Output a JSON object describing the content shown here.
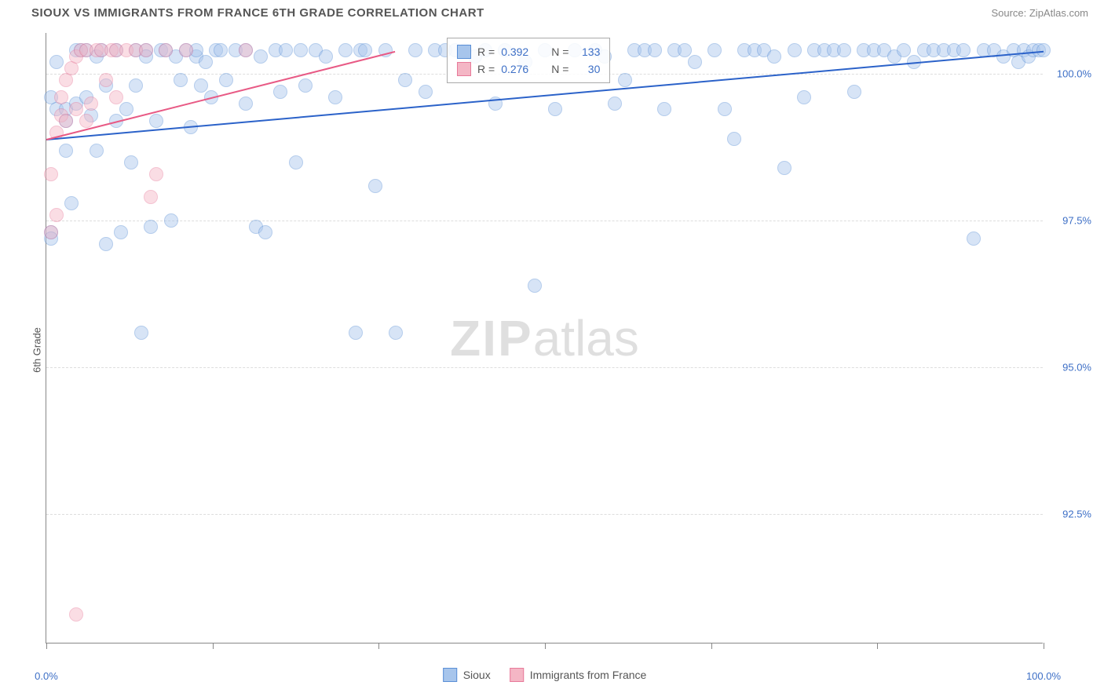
{
  "title": "SIOUX VS IMMIGRANTS FROM FRANCE 6TH GRADE CORRELATION CHART",
  "source": "Source: ZipAtlas.com",
  "y_axis_label": "6th Grade",
  "watermark_bold": "ZIP",
  "watermark_light": "atlas",
  "chart": {
    "type": "scatter",
    "background_color": "#ffffff",
    "grid_color": "#dddddd",
    "axis_color": "#888888",
    "xlim": [
      0,
      100
    ],
    "ylim": [
      90.3,
      100.7
    ],
    "x_ticks": [
      0,
      16.67,
      33.33,
      50,
      66.67,
      83.33,
      100
    ],
    "x_tick_labels": {
      "0": "0.0%",
      "100": "100.0%"
    },
    "y_ticks": [
      92.5,
      95.0,
      97.5,
      100.0
    ],
    "y_tick_labels": [
      "92.5%",
      "95.0%",
      "97.5%",
      "100.0%"
    ],
    "point_radius": 9,
    "point_opacity": 0.45,
    "series": [
      {
        "name": "Sioux",
        "color_fill": "#a7c5ec",
        "color_stroke": "#5a8fd6",
        "R": "0.392",
        "N": "133",
        "trend": {
          "x1": 0,
          "y1": 98.9,
          "x2": 100,
          "y2": 100.4,
          "color": "#2b62c9",
          "width": 2
        },
        "points": [
          [
            0.5,
            97.3
          ],
          [
            0.5,
            97.2
          ],
          [
            0.5,
            99.6
          ],
          [
            1,
            100.2
          ],
          [
            1,
            99.4
          ],
          [
            2,
            99.4
          ],
          [
            2,
            99.2
          ],
          [
            2,
            98.7
          ],
          [
            2.5,
            97.8
          ],
          [
            3,
            100.4
          ],
          [
            3,
            99.5
          ],
          [
            3.5,
            100.4
          ],
          [
            4,
            100.4
          ],
          [
            4,
            99.6
          ],
          [
            4.5,
            99.3
          ],
          [
            5,
            98.7
          ],
          [
            5,
            100.3
          ],
          [
            5.5,
            100.4
          ],
          [
            6,
            97.1
          ],
          [
            6,
            99.8
          ],
          [
            7,
            100.4
          ],
          [
            7,
            99.2
          ],
          [
            7.5,
            97.3
          ],
          [
            8,
            99.4
          ],
          [
            8.5,
            98.5
          ],
          [
            9,
            100.4
          ],
          [
            9,
            99.8
          ],
          [
            9.5,
            95.6
          ],
          [
            10,
            100.4
          ],
          [
            10,
            100.3
          ],
          [
            10.5,
            97.4
          ],
          [
            11,
            99.2
          ],
          [
            11.5,
            100.4
          ],
          [
            12,
            100.4
          ],
          [
            12.5,
            97.5
          ],
          [
            13,
            100.3
          ],
          [
            13.5,
            99.9
          ],
          [
            14,
            100.4
          ],
          [
            14.5,
            99.1
          ],
          [
            15,
            100.3
          ],
          [
            15,
            100.4
          ],
          [
            15.5,
            99.8
          ],
          [
            16,
            100.2
          ],
          [
            16.5,
            99.6
          ],
          [
            17,
            100.4
          ],
          [
            17.5,
            100.4
          ],
          [
            18,
            99.9
          ],
          [
            19,
            100.4
          ],
          [
            20,
            99.5
          ],
          [
            20,
            100.4
          ],
          [
            21,
            97.4
          ],
          [
            21.5,
            100.3
          ],
          [
            22,
            97.3
          ],
          [
            23,
            100.4
          ],
          [
            23.5,
            99.7
          ],
          [
            24,
            100.4
          ],
          [
            25,
            98.5
          ],
          [
            25.5,
            100.4
          ],
          [
            26,
            99.8
          ],
          [
            27,
            100.4
          ],
          [
            28,
            100.3
          ],
          [
            29,
            99.6
          ],
          [
            30,
            100.4
          ],
          [
            31,
            95.6
          ],
          [
            31.5,
            100.4
          ],
          [
            32,
            100.4
          ],
          [
            33,
            98.1
          ],
          [
            34,
            100.4
          ],
          [
            35,
            95.6
          ],
          [
            36,
            99.9
          ],
          [
            37,
            100.4
          ],
          [
            38,
            99.7
          ],
          [
            39,
            100.4
          ],
          [
            40,
            100.4
          ],
          [
            41,
            100.4
          ],
          [
            42,
            100.4
          ],
          [
            43,
            100.3
          ],
          [
            44,
            100.4
          ],
          [
            45,
            99.5
          ],
          [
            46,
            100.4
          ],
          [
            48,
            100.2
          ],
          [
            49,
            96.4
          ],
          [
            50,
            100.4
          ],
          [
            51,
            99.4
          ],
          [
            53,
            100.4
          ],
          [
            55,
            100.4
          ],
          [
            56,
            100.3
          ],
          [
            57,
            99.5
          ],
          [
            58,
            99.9
          ],
          [
            59,
            100.4
          ],
          [
            60,
            100.4
          ],
          [
            61,
            100.4
          ],
          [
            62,
            99.4
          ],
          [
            63,
            100.4
          ],
          [
            64,
            100.4
          ],
          [
            65,
            100.2
          ],
          [
            67,
            100.4
          ],
          [
            68,
            99.4
          ],
          [
            69,
            98.9
          ],
          [
            70,
            100.4
          ],
          [
            71,
            100.4
          ],
          [
            72,
            100.4
          ],
          [
            73,
            100.3
          ],
          [
            74,
            98.4
          ],
          [
            75,
            100.4
          ],
          [
            76,
            99.6
          ],
          [
            77,
            100.4
          ],
          [
            78,
            100.4
          ],
          [
            79,
            100.4
          ],
          [
            80,
            100.4
          ],
          [
            81,
            99.7
          ],
          [
            82,
            100.4
          ],
          [
            83,
            100.4
          ],
          [
            84,
            100.4
          ],
          [
            85,
            100.3
          ],
          [
            86,
            100.4
          ],
          [
            87,
            100.2
          ],
          [
            88,
            100.4
          ],
          [
            89,
            100.4
          ],
          [
            90,
            100.4
          ],
          [
            91,
            100.4
          ],
          [
            92,
            100.4
          ],
          [
            93,
            97.2
          ],
          [
            94,
            100.4
          ],
          [
            95,
            100.4
          ],
          [
            96,
            100.3
          ],
          [
            97,
            100.4
          ],
          [
            97.5,
            100.2
          ],
          [
            98,
            100.4
          ],
          [
            98.5,
            100.3
          ],
          [
            99,
            100.4
          ],
          [
            99.5,
            100.4
          ],
          [
            100,
            100.4
          ]
        ]
      },
      {
        "name": "Immigrants from France",
        "color_fill": "#f4b6c5",
        "color_stroke": "#e87a9a",
        "R": "0.276",
        "N": "30",
        "trend": {
          "x1": 0,
          "y1": 98.9,
          "x2": 35,
          "y2": 100.4,
          "color": "#e85a85",
          "width": 2
        },
        "points": [
          [
            0.5,
            98.3
          ],
          [
            0.5,
            97.3
          ],
          [
            1,
            97.6
          ],
          [
            1,
            99.0
          ],
          [
            1.5,
            99.3
          ],
          [
            1.5,
            99.6
          ],
          [
            2,
            99.2
          ],
          [
            2,
            99.9
          ],
          [
            2.5,
            100.1
          ],
          [
            3,
            100.3
          ],
          [
            3,
            99.4
          ],
          [
            3.5,
            100.4
          ],
          [
            4,
            99.2
          ],
          [
            4,
            100.4
          ],
          [
            4.5,
            99.5
          ],
          [
            5,
            100.4
          ],
          [
            5.5,
            100.4
          ],
          [
            6,
            99.9
          ],
          [
            6.5,
            100.4
          ],
          [
            7,
            100.4
          ],
          [
            7,
            99.6
          ],
          [
            8,
            100.4
          ],
          [
            9,
            100.4
          ],
          [
            10,
            100.4
          ],
          [
            10.5,
            97.9
          ],
          [
            11,
            98.3
          ],
          [
            12,
            100.4
          ],
          [
            14,
            100.4
          ],
          [
            20,
            100.4
          ],
          [
            3,
            90.8
          ]
        ]
      }
    ]
  },
  "legend": {
    "R_label": "R =",
    "N_label": "N ="
  },
  "bottom_legend": [
    {
      "label": "Sioux",
      "fill": "#a7c5ec",
      "stroke": "#5a8fd6"
    },
    {
      "label": "Immigrants from France",
      "fill": "#f4b6c5",
      "stroke": "#e87a9a"
    }
  ]
}
